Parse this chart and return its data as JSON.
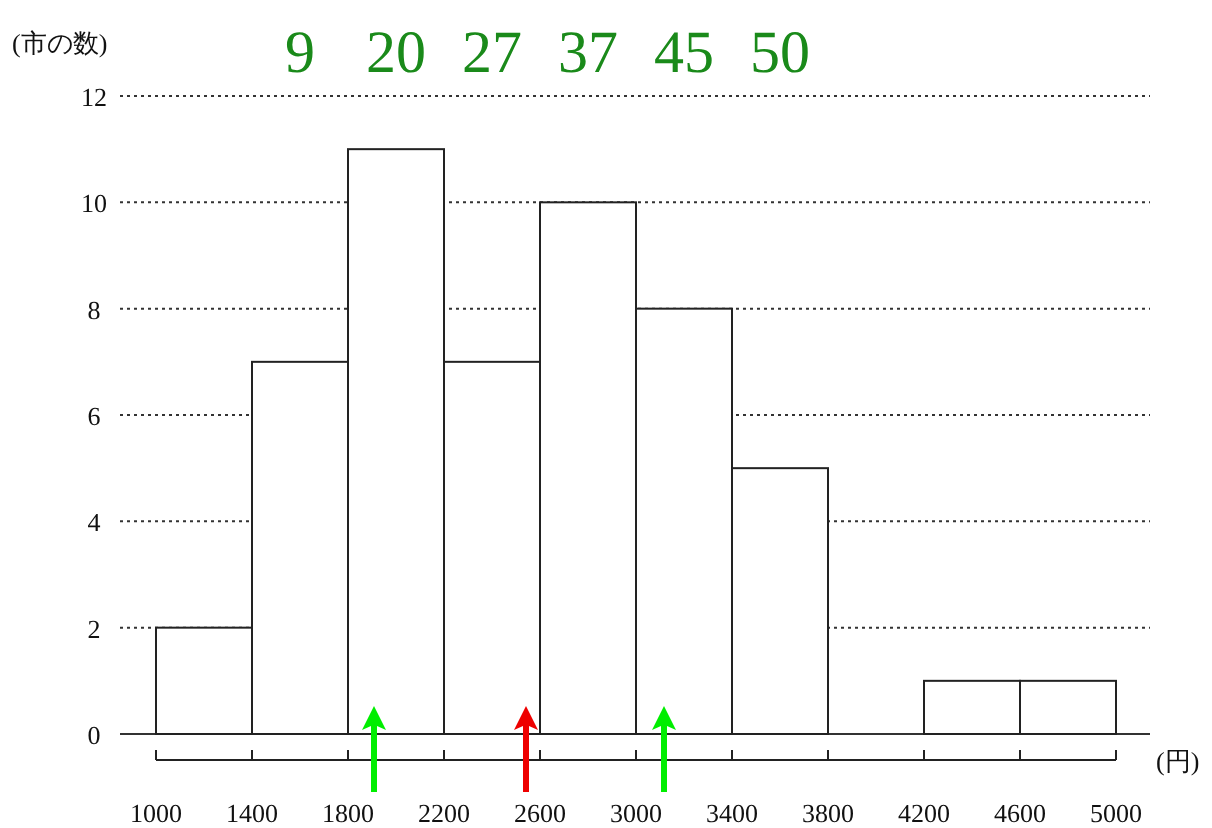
{
  "chart_data": {
    "type": "histogram",
    "ylabel": "(市の数)",
    "xlabel": "(円)",
    "bins": [
      1000,
      1400,
      1800,
      2200,
      2600,
      3000,
      3400,
      3800,
      4200,
      4600,
      5000
    ],
    "values": [
      2,
      7,
      11,
      7,
      10,
      8,
      5,
      0,
      1,
      1
    ],
    "color": "#ffffff",
    "xlim": [
      1000,
      5000
    ],
    "xticks": [
      1000,
      1400,
      1800,
      2200,
      2600,
      3000,
      3400,
      3800,
      4200,
      4600,
      5000
    ],
    "ylim": [
      0,
      12
    ],
    "yticks": [
      0,
      2,
      4,
      6,
      8,
      10,
      12
    ],
    "grid": "y",
    "annotations": [
      "9",
      "20",
      "27",
      "37",
      "45",
      "50"
    ]
  }
}
